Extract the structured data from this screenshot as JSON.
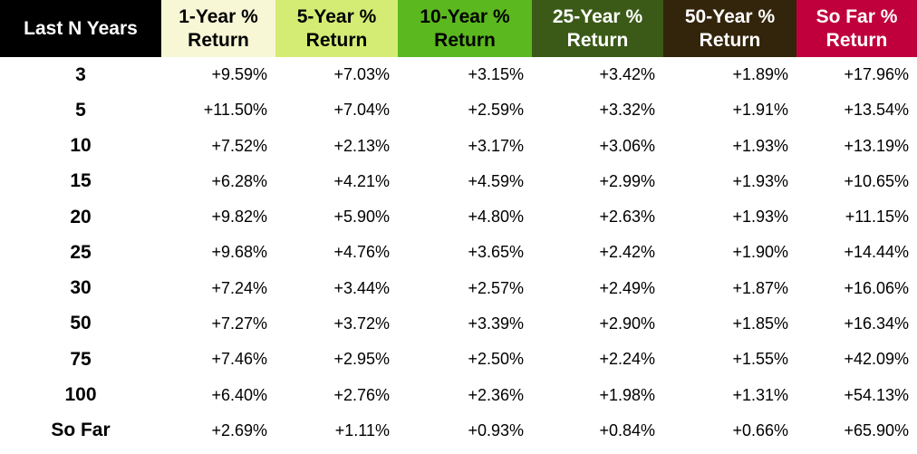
{
  "chart_data": {
    "type": "table",
    "columns": [
      {
        "lines": [
          "Last N Years"
        ],
        "bg": "#000000",
        "fg": "#ffffff"
      },
      {
        "lines": [
          "1-Year %",
          "Return"
        ],
        "bg": "#f7f7d6",
        "fg": "#000000"
      },
      {
        "lines": [
          "5-Year %",
          "Return"
        ],
        "bg": "#d4ec74",
        "fg": "#000000"
      },
      {
        "lines": [
          "10-Year %",
          "Return"
        ],
        "bg": "#5bb81f",
        "fg": "#000000"
      },
      {
        "lines": [
          "25-Year %",
          "Return"
        ],
        "bg": "#3b5a17",
        "fg": "#ffffff"
      },
      {
        "lines": [
          "50-Year %",
          "Return"
        ],
        "bg": "#33250b",
        "fg": "#ffffff"
      },
      {
        "lines": [
          "So Far %",
          "Return"
        ],
        "bg": "#c0003c",
        "fg": "#ffffff"
      }
    ],
    "rows": [
      {
        "label": "3",
        "values": [
          "+9.59%",
          "+7.03%",
          "+3.15%",
          "+3.42%",
          "+1.89%",
          "+17.96%"
        ]
      },
      {
        "label": "5",
        "values": [
          "+11.50%",
          "+7.04%",
          "+2.59%",
          "+3.32%",
          "+1.91%",
          "+13.54%"
        ]
      },
      {
        "label": "10",
        "values": [
          "+7.52%",
          "+2.13%",
          "+3.17%",
          "+3.06%",
          "+1.93%",
          "+13.19%"
        ]
      },
      {
        "label": "15",
        "values": [
          "+6.28%",
          "+4.21%",
          "+4.59%",
          "+2.99%",
          "+1.93%",
          "+10.65%"
        ]
      },
      {
        "label": "20",
        "values": [
          "+9.82%",
          "+5.90%",
          "+4.80%",
          "+2.63%",
          "+1.93%",
          "+11.15%"
        ]
      },
      {
        "label": "25",
        "values": [
          "+9.68%",
          "+4.76%",
          "+3.65%",
          "+2.42%",
          "+1.90%",
          "+14.44%"
        ]
      },
      {
        "label": "30",
        "values": [
          "+7.24%",
          "+3.44%",
          "+2.57%",
          "+2.49%",
          "+1.87%",
          "+16.06%"
        ]
      },
      {
        "label": "50",
        "values": [
          "+7.27%",
          "+3.72%",
          "+3.39%",
          "+2.90%",
          "+1.85%",
          "+16.34%"
        ]
      },
      {
        "label": "75",
        "values": [
          "+7.46%",
          "+2.95%",
          "+2.50%",
          "+2.24%",
          "+1.55%",
          "+42.09%"
        ]
      },
      {
        "label": "100",
        "values": [
          "+6.40%",
          "+2.76%",
          "+2.36%",
          "+1.98%",
          "+1.31%",
          "+54.13%"
        ]
      },
      {
        "label": "So Far",
        "values": [
          "+2.69%",
          "+1.11%",
          "+0.93%",
          "+0.84%",
          "+0.66%",
          "+65.90%"
        ]
      }
    ]
  }
}
